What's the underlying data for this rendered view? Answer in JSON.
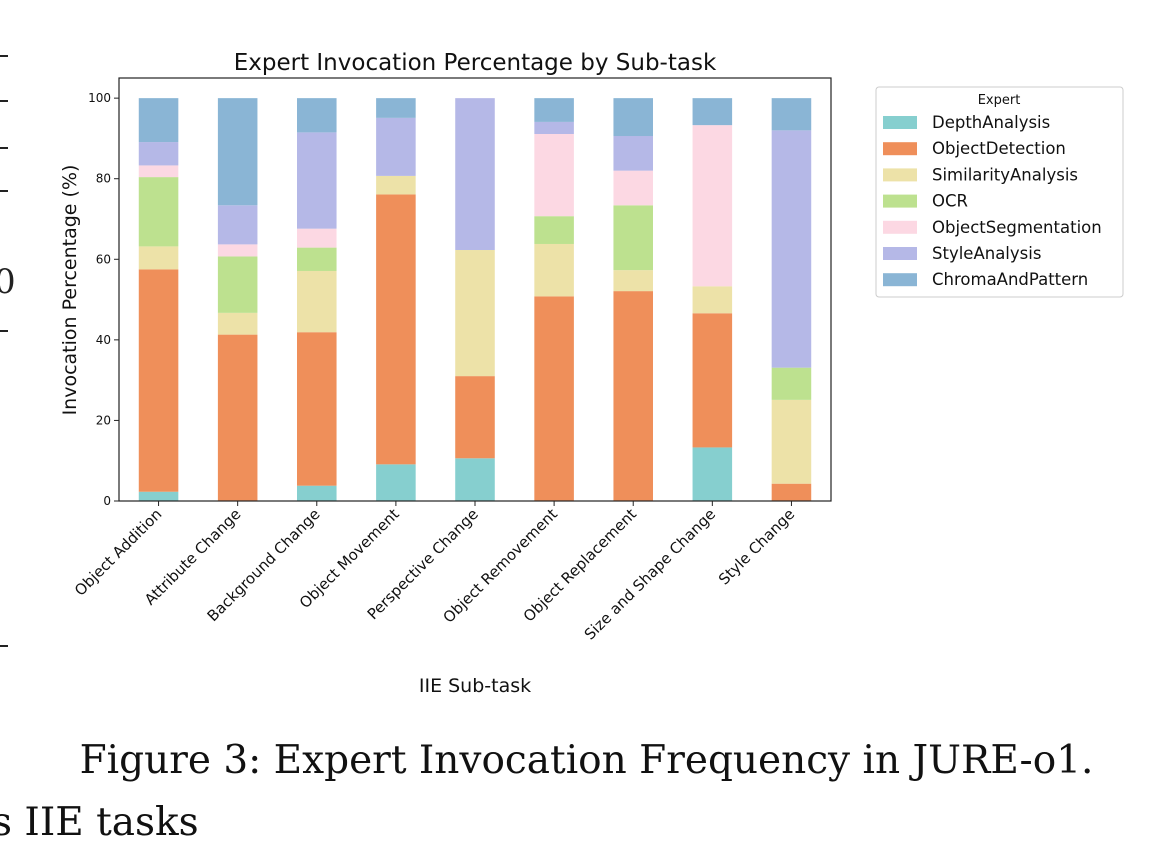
{
  "figure": {
    "caption": "Figure 3: Expert Invocation Frequency in JURE-o1.",
    "bottom_text": "s IIE tasks",
    "left_margin_char": "0"
  },
  "chart_data": {
    "type": "bar",
    "stacked": true,
    "title": "Expert Invocation Percentage by Sub-task",
    "xlabel": "IIE Sub-task",
    "ylabel": "Invocation Percentage (%)",
    "ylim": [
      0,
      105
    ],
    "yticks": [
      0,
      20,
      40,
      60,
      80,
      100
    ],
    "grid": false,
    "legend_title": "Expert",
    "legend_position": "outside-right",
    "categories": [
      "Object Addition",
      "Attribute Change",
      "Background Change",
      "Object Movement",
      "Perspective Change",
      "Object Removement",
      "Object Replacement",
      "Size and Shape Change",
      "Style Change"
    ],
    "series": [
      {
        "name": "DepthAnalysis",
        "color": "#86cfcf",
        "values": [
          2.3,
          0,
          3.8,
          9.1,
          10.6,
          0,
          0,
          13.3,
          0
        ]
      },
      {
        "name": "ObjectDetection",
        "color": "#ef8f5a",
        "values": [
          55.2,
          41.3,
          38.1,
          67.0,
          20.4,
          50.8,
          52.1,
          33.3,
          4.3
        ]
      },
      {
        "name": "SimilarityAnalysis",
        "color": "#ede2a8",
        "values": [
          5.7,
          5.4,
          15.2,
          4.6,
          31.3,
          13.0,
          5.2,
          6.7,
          20.8
        ]
      },
      {
        "name": "OCR",
        "color": "#bde18f",
        "values": [
          17.2,
          14.0,
          5.8,
          0,
          0,
          6.9,
          16.1,
          0,
          8.0
        ]
      },
      {
        "name": "ObjectSegmentation",
        "color": "#fcd8e3",
        "values": [
          2.9,
          3.0,
          4.7,
          0,
          0,
          20.4,
          8.6,
          40.0,
          0
        ]
      },
      {
        "name": "StyleAnalysis",
        "color": "#b5b8e7",
        "values": [
          5.8,
          9.7,
          23.9,
          14.4,
          37.7,
          3.0,
          8.6,
          0,
          58.9
        ]
      },
      {
        "name": "ChromaAndPattern",
        "color": "#8ab5d5",
        "values": [
          10.9,
          26.6,
          8.5,
          4.9,
          0,
          5.9,
          9.4,
          6.7,
          8.0
        ]
      }
    ]
  }
}
